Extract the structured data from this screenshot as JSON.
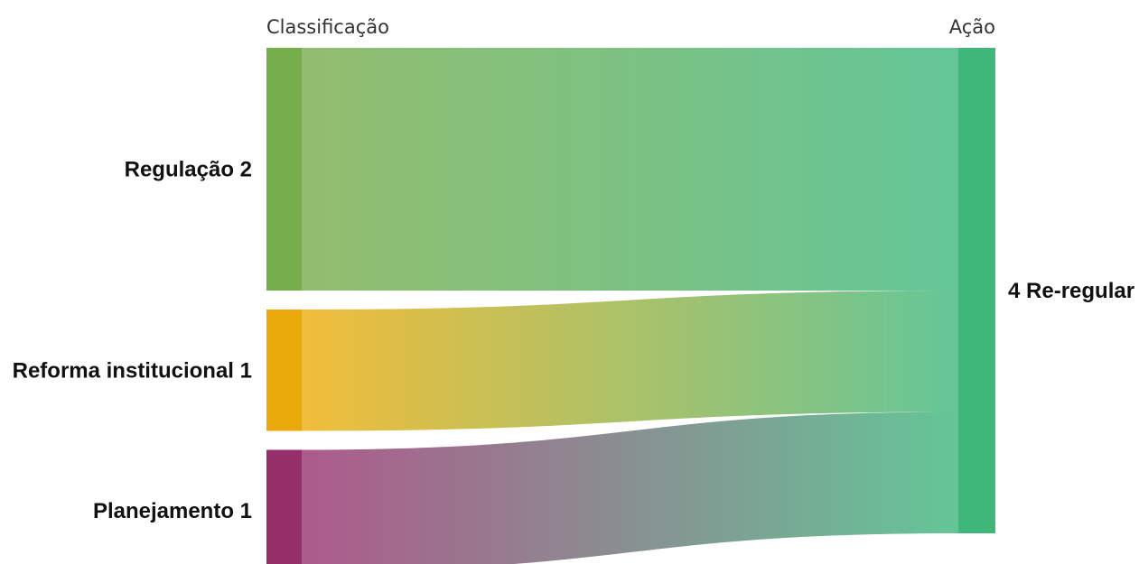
{
  "headers": {
    "left": "Classificação",
    "right": "Ação"
  },
  "sources": [
    {
      "id": "regulacao",
      "label": "Regulação 2",
      "value": 2,
      "color": "#75ae4a"
    },
    {
      "id": "reforma",
      "label": "Reforma institucional 1",
      "value": 1,
      "color": "#e9a90b"
    },
    {
      "id": "planejamento",
      "label": "Planejamento 1",
      "value": 1,
      "color": "#942f6a"
    }
  ],
  "targets": [
    {
      "id": "reregular",
      "label": "4 Re-regular",
      "value": 4,
      "color": "#3fb778"
    }
  ],
  "links": [
    {
      "source": "regulacao",
      "target": "reregular",
      "value": 2
    },
    {
      "source": "reforma",
      "target": "reregular",
      "value": 1
    },
    {
      "source": "planejamento",
      "target": "reregular",
      "value": 1
    }
  ],
  "colors": {
    "link_regulacao_start": "#93bd6e",
    "link_reforma_start": "#f1bd3b",
    "link_planejamento_start": "#ad5a8b",
    "link_end": "#64c698"
  }
}
